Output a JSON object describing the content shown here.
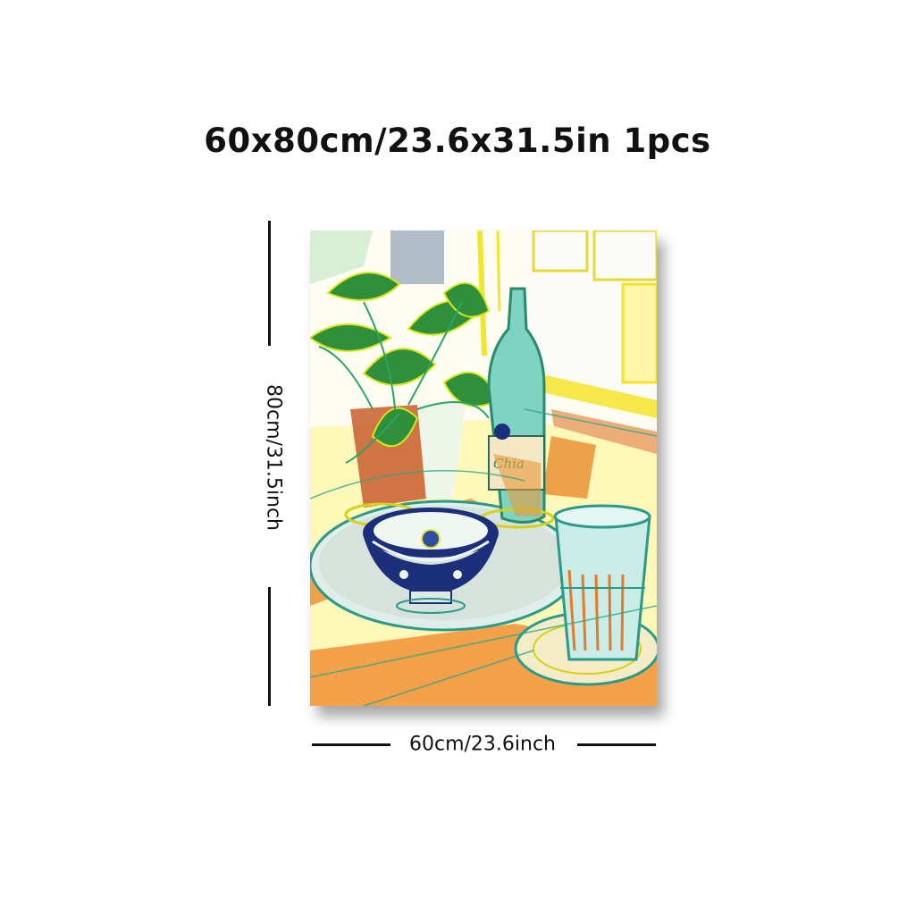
{
  "product": {
    "headline": "60x80cm/23.6x31.5in 1pcs",
    "height_label": "80cm/31.5inch",
    "width_label": "60cm/23.6inch",
    "quantity": "1pcs"
  },
  "artwork": {
    "subject": "still life painting",
    "bottle_label": "Chia",
    "palette": {
      "yellow": "#f5e51f",
      "green": "#2f8f3a",
      "orange": "#f0902f",
      "teal": "#3bb8b0",
      "navy": "#1c2f7a"
    }
  }
}
